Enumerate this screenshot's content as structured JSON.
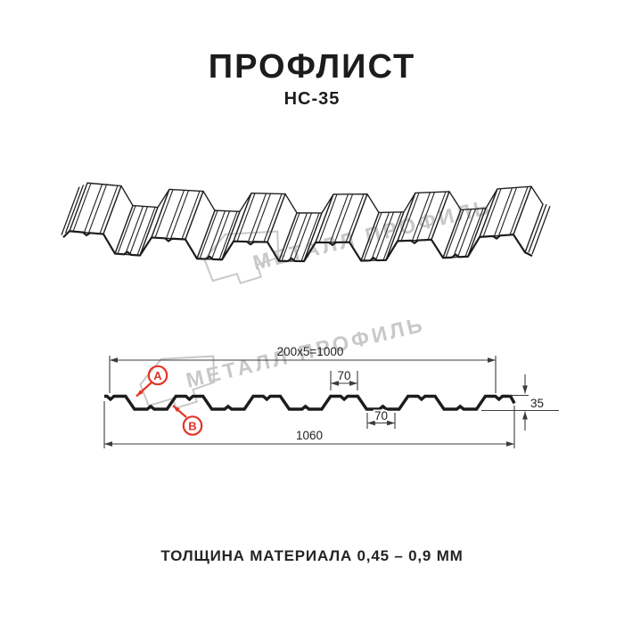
{
  "header": {
    "title": "ПРОФЛИСТ",
    "subtitle": "НС-35"
  },
  "watermark": {
    "text": "МЕТАЛЛ ПРОФИЛЬ",
    "logo": "metal-profil-flag-logo"
  },
  "cross_section": {
    "dim_coverage": "200x5=1000",
    "dim_rib_top": "70",
    "dim_rib_bottom": "70",
    "dim_height": "35",
    "dim_overall": "1060",
    "marker_a": "A",
    "marker_b": "B"
  },
  "footer": {
    "note": "ТОЛЩИНА МАТЕРИАЛА 0,45 – 0,9 ММ"
  },
  "colors": {
    "background": "#ffffff",
    "ink": "#1c1c1c",
    "line": "#3c3c3c",
    "red": "#e23527",
    "watermark": "#c8c8c8"
  }
}
